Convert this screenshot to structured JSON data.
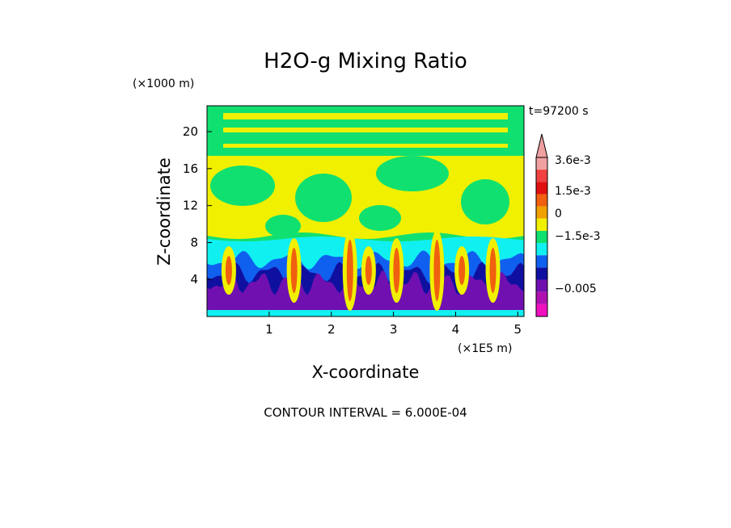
{
  "chart_data": {
    "type": "heatmap",
    "title": "H2O-g Mixing Ratio",
    "xlabel": "X-coordinate",
    "ylabel": "Z-coordinate",
    "x_unit": "(×1E5 m)",
    "y_unit": "(×1000 m)",
    "time_label": "t=97200 s",
    "xlim": [
      0,
      5.1
    ],
    "ylim": [
      0,
      22.8
    ],
    "x_ticks": [
      "1",
      "2",
      "3",
      "4",
      "5"
    ],
    "y_ticks": [
      "4",
      "8",
      "12",
      "16",
      "20"
    ],
    "contour_interval_text": "CONTOUR INTERVAL = 6.000E-04",
    "colorbar": {
      "labels": [
        "3.6e-3",
        "1.5e-3",
        "0",
        "−1.5e-3",
        "−0.005"
      ],
      "colors": [
        "#f0a0a0",
        "#f04040",
        "#e01010",
        "#f06010",
        "#f0a000",
        "#f0f000",
        "#10e070",
        "#10f0f0",
        "#1060f0",
        "#1010a0",
        "#7010b0",
        "#b010b0",
        "#f010c0"
      ]
    },
    "layers": [
      {
        "name": "background",
        "color": "#f0f000"
      },
      {
        "name": "upper-band",
        "color": "#10e070"
      },
      {
        "name": "lower-cyan-layer",
        "color": "#10f0f0"
      },
      {
        "name": "blue-layer",
        "color": "#1060f0"
      },
      {
        "name": "dark-blue-layer",
        "color": "#1010a0"
      },
      {
        "name": "purple-layer",
        "color": "#7010b0"
      },
      {
        "name": "plume-core",
        "color": "#f06010"
      }
    ]
  }
}
